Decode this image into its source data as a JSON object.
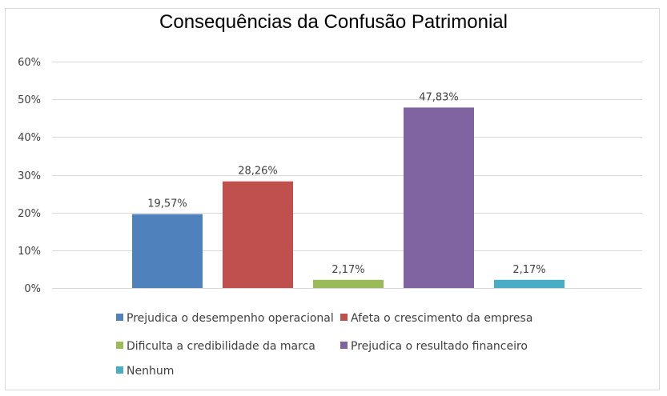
{
  "chart_data": {
    "type": "bar",
    "title": "Consequências da Confusão Patrimonial",
    "xlabel": "",
    "ylabel": "",
    "ylim": [
      0,
      60
    ],
    "y_ticks": [
      "0%",
      "10%",
      "20%",
      "30%",
      "40%",
      "50%",
      "60%"
    ],
    "y_tick_values": [
      0,
      10,
      20,
      30,
      40,
      50,
      60
    ],
    "grid": true,
    "legend_position": "bottom",
    "categories": [
      "Prejudica o desempenho operacional",
      "Afeta o crescimento da empresa",
      "Dificulta a credibilidade da marca",
      "Prejudica o resultado financeiro",
      "Nenhum"
    ],
    "values": [
      19.57,
      28.26,
      2.17,
      47.83,
      2.17
    ],
    "data_labels": [
      "19,57%",
      "28,26%",
      "2,17%",
      "47,83%",
      "2,17%"
    ],
    "colors": [
      "#4f81bd",
      "#c0504d",
      "#9bbb59",
      "#8064a2",
      "#4bacc6"
    ]
  }
}
